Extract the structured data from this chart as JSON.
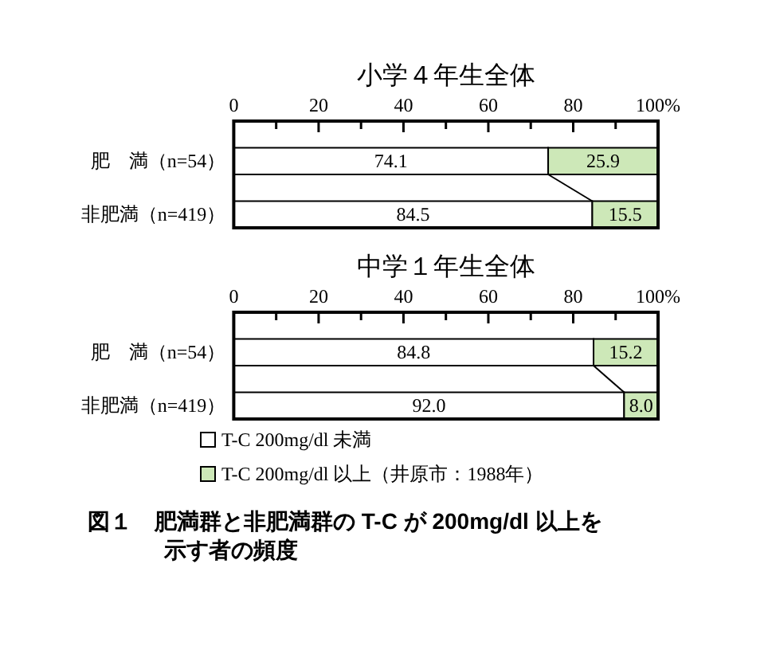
{
  "chart_data": [
    {
      "type": "bar",
      "title": "小学４年生全体",
      "orientation": "horizontal",
      "stacked": true,
      "categories": [
        "肥　満（n=54）",
        "非肥満（n=419）"
      ],
      "series": [
        {
          "color": "#ffffff",
          "values": [
            74.1,
            84.5
          ],
          "value_labels": [
            "74.1",
            "84.5"
          ]
        },
        {
          "color": "#cde8b8",
          "values": [
            25.9,
            15.5
          ],
          "value_labels": [
            "25.9",
            "15.5"
          ]
        }
      ],
      "xlim": [
        0,
        100
      ],
      "xticks": [
        0,
        {
          "value": 10,
          "label": null
        },
        20,
        {
          "value": 30,
          "label": null
        },
        40,
        {
          "value": 50,
          "label": null
        },
        60,
        {
          "value": 70,
          "label": null
        },
        80,
        {
          "value": 90,
          "label": null
        },
        {
          "value": 100,
          "label": "100%"
        }
      ]
    },
    {
      "type": "bar",
      "title": "中学１年生全体",
      "orientation": "horizontal",
      "stacked": true,
      "categories": [
        "肥　満（n=54）",
        "非肥満（n=419）"
      ],
      "series": [
        {
          "name": "T-C 200mg/dl 未満",
          "color": "#ffffff",
          "values": [
            84.8,
            92.0
          ],
          "value_labels": [
            "84.8",
            "92.0"
          ]
        },
        {
          "name": "T-C 200mg/dl 以上（井原市：1988年）",
          "color": "#cde8b8",
          "values": [
            15.2,
            8.0
          ],
          "value_labels": [
            "15.2",
            "8.0"
          ]
        }
      ],
      "xlim": [
        0,
        100
      ],
      "xticks": [
        0,
        {
          "value": 10,
          "label": null
        },
        20,
        {
          "value": 30,
          "label": null
        },
        40,
        {
          "value": 50,
          "label": null
        },
        60,
        {
          "value": 70,
          "label": null
        },
        80,
        {
          "value": 90,
          "label": null
        },
        {
          "value": 100,
          "label": "100%"
        }
      ],
      "legend": "bottom",
      "annotations": [
        "図１　肥満群と非肥満群の T-C が 200mg/dl 以上を示す者の頻度"
      ]
    }
  ]
}
